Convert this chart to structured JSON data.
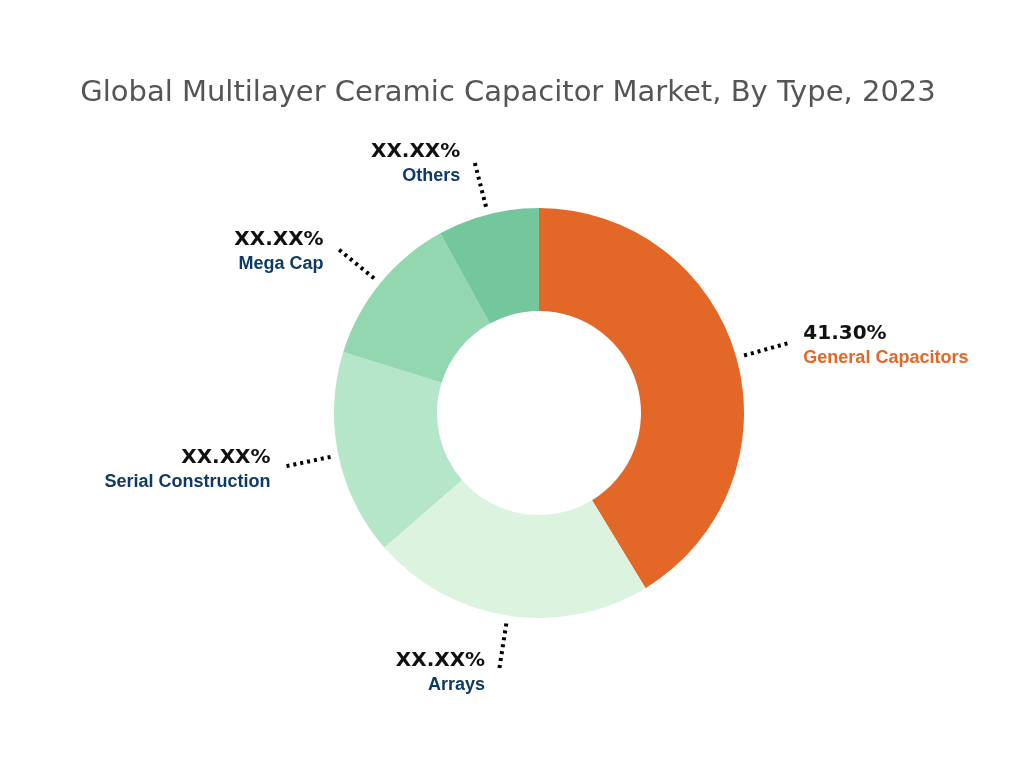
{
  "chart_data": {
    "type": "donut",
    "title": "Global Multilayer Ceramic Capacitor Market, By Type, 2023",
    "categories": [
      "General Capacitors",
      "Arrays",
      "Serial Construction",
      "Mega Cap",
      "Others"
    ],
    "values": [
      41.3,
      22.3,
      16.2,
      12.2,
      8.0
    ],
    "colors": [
      "#e36726",
      "#dcf3e0",
      "#b5e6c9",
      "#93d7b0",
      "#74c69d"
    ],
    "value_labels": [
      "41.30%",
      "XX.XX%",
      "XX.XX%",
      "XX.XX%",
      "XX.XX%"
    ],
    "legend": false
  }
}
